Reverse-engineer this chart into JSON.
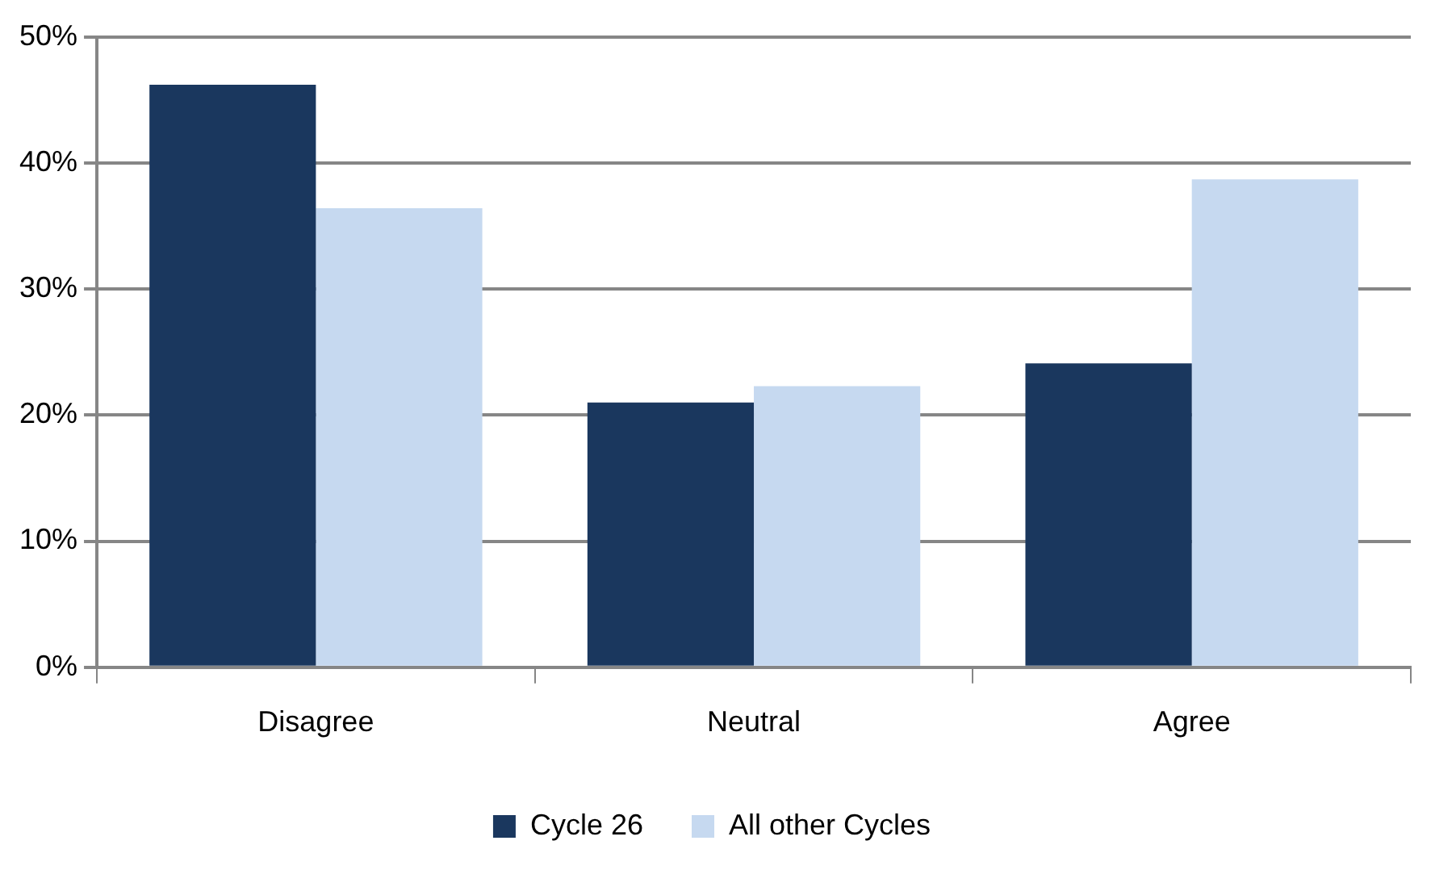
{
  "chart_data": {
    "type": "bar",
    "categories": [
      "Disagree",
      "Neutral",
      "Agree"
    ],
    "series": [
      {
        "name": "Cycle 26",
        "color": "#1a375e",
        "values": [
          46.2,
          21.0,
          24.1
        ]
      },
      {
        "name": "All other Cycles",
        "color": "#c6d9f0",
        "values": [
          36.4,
          22.3,
          38.7
        ]
      }
    ],
    "ylim": [
      0,
      50
    ],
    "yticks": [
      {
        "value": 0,
        "label": "0%"
      },
      {
        "value": 10,
        "label": "10%"
      },
      {
        "value": 20,
        "label": "20%"
      },
      {
        "value": 30,
        "label": "30%"
      },
      {
        "value": 40,
        "label": "40%"
      },
      {
        "value": 50,
        "label": "50%"
      }
    ],
    "grid": "y",
    "legend": "bottom"
  }
}
